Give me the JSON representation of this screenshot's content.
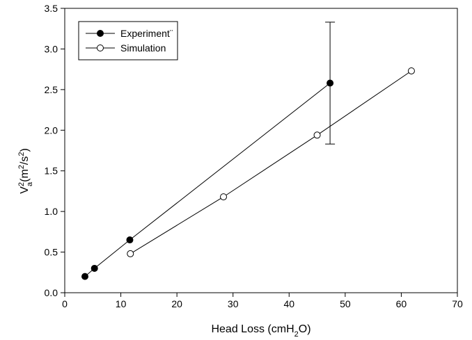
{
  "chart_data": {
    "type": "line",
    "xlabel": {
      "base": "Head Loss (cmH",
      "sub": "2",
      "tail": "O)"
    },
    "ylabel": {
      "base": "V",
      "sup1": "2",
      "sub1": "a",
      "mid": "(m",
      "sup2": "2",
      "slash": "/s",
      "sup3": "2",
      "tail": ")"
    },
    "xlim": [
      0,
      70
    ],
    "ylim": [
      0,
      3.5
    ],
    "xticks": [
      "0",
      "10",
      "20",
      "30",
      "40",
      "50",
      "60",
      "70"
    ],
    "yticks": [
      "0.0",
      "0.5",
      "1.0",
      "1.5",
      "2.0",
      "2.5",
      "3.0",
      "3.5"
    ],
    "grid": false,
    "legend_position": "top-left",
    "series": [
      {
        "name": "Experiment¨",
        "marker": "filled-circle",
        "color": "#000000",
        "x": [
          3.6,
          5.3,
          11.6,
          47.3
        ],
        "y": [
          0.2,
          0.3,
          0.65,
          2.58
        ],
        "error_bars": [
          {
            "x": 47.3,
            "low": 1.83,
            "high": 3.33
          }
        ]
      },
      {
        "name": "Simulation",
        "marker": "open-circle",
        "color": "#000000",
        "x": [
          11.7,
          28.3,
          45.0,
          61.8
        ],
        "y": [
          0.48,
          1.18,
          1.94,
          2.73
        ]
      }
    ]
  }
}
